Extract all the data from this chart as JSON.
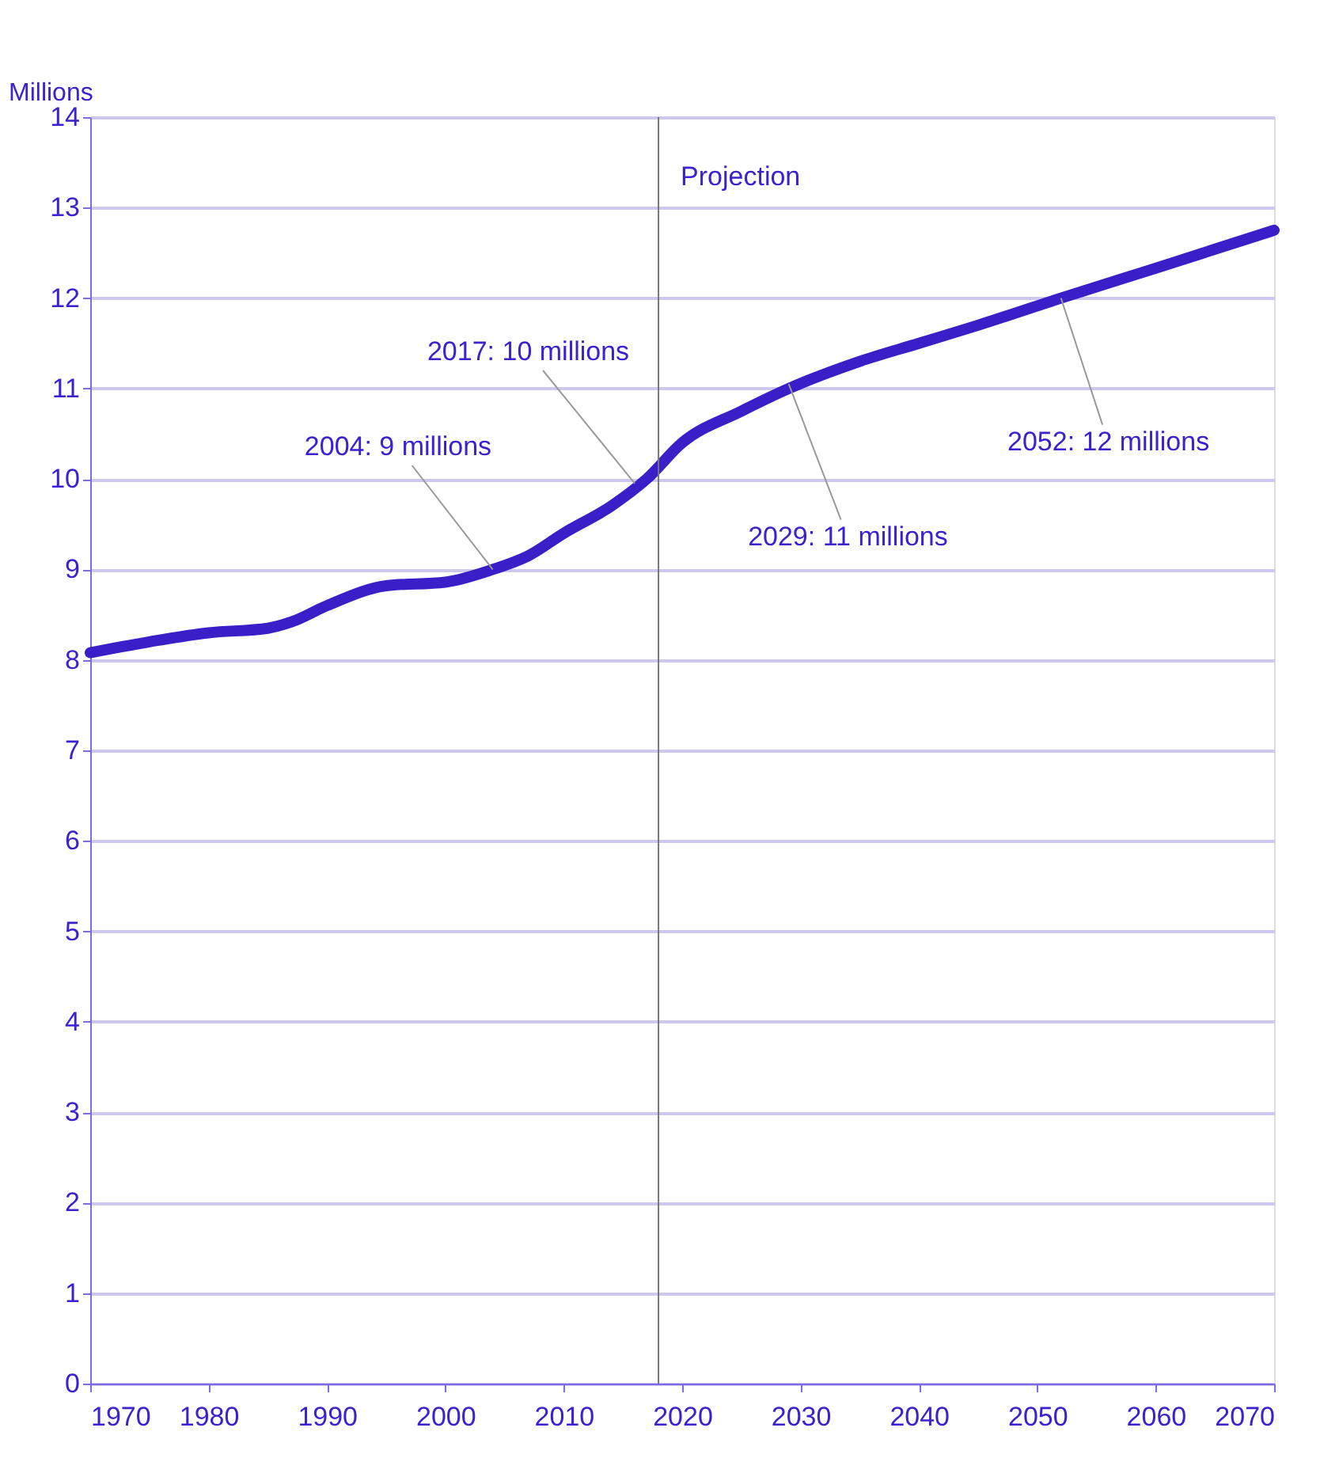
{
  "chart_data": {
    "type": "line",
    "ylabel": "Millions",
    "x": [
      1970,
      1975,
      1980,
      1985,
      1987,
      1990,
      1995,
      2000,
      2004,
      2007,
      2010,
      2014,
      2017,
      2020,
      2025,
      2029,
      2035,
      2040,
      2045,
      2052,
      2060,
      2070
    ],
    "series": [
      {
        "color": "#3a1fc9",
        "values": [
          8.08,
          8.2,
          8.3,
          8.35,
          8.42,
          8.6,
          8.82,
          8.86,
          9.0,
          9.15,
          9.4,
          9.7,
          10.0,
          10.4,
          10.75,
          11.0,
          11.3,
          11.5,
          11.7,
          12.0,
          12.33,
          12.75
        ]
      }
    ],
    "xlim": [
      1970,
      2070
    ],
    "xticks": [
      1970,
      1980,
      1990,
      2000,
      2010,
      2020,
      2030,
      2040,
      2050,
      2060,
      2070
    ],
    "ylim": [
      0,
      14
    ],
    "yticks": [
      0,
      1,
      2,
      3,
      4,
      5,
      6,
      7,
      8,
      9,
      10,
      11,
      12,
      13,
      14
    ],
    "grid": "y",
    "marker": "none",
    "line_style": "solid",
    "ref_lines": [
      {
        "axis": "x",
        "value": 2018,
        "label": "Projection",
        "color": "#777777"
      }
    ],
    "annotations": [
      {
        "text": "2004: 9 millions",
        "x": 2004,
        "y": 9.0
      },
      {
        "text": "2017: 10 millions",
        "x": 2016,
        "y": 9.95
      },
      {
        "text": "2029: 11 millions",
        "x": 2029,
        "y": 11.05
      },
      {
        "text": "2052: 12 millions",
        "x": 2052,
        "y": 12.0
      }
    ]
  }
}
